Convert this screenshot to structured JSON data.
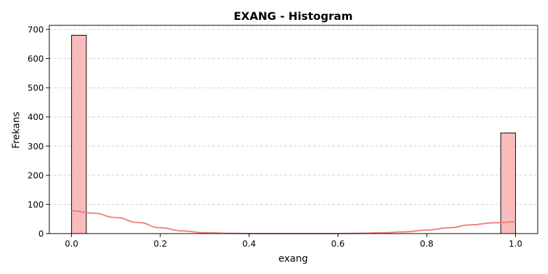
{
  "chart_data": {
    "type": "bar",
    "title": "EXANG - Histogram",
    "xlabel": "exang",
    "ylabel": "Frekans",
    "xlim": [
      -0.05,
      1.05
    ],
    "ylim": [
      0,
      714
    ],
    "xticks": [
      0.0,
      0.2,
      0.4,
      0.6,
      0.8,
      1.0
    ],
    "xtick_labels": [
      "0.0",
      "0.2",
      "0.4",
      "0.6",
      "0.8",
      "1.0"
    ],
    "yticks": [
      0,
      100,
      200,
      300,
      400,
      500,
      600,
      700
    ],
    "ytick_labels": [
      "0",
      "100",
      "200",
      "300",
      "400",
      "500",
      "600",
      "700"
    ],
    "grid": "y-dashed",
    "bar_color": "#f8bcbc",
    "bar_edge_color": "#000000",
    "kde_color": "#f08080",
    "bars": [
      {
        "x0": 0.0,
        "x1": 0.0333,
        "value": 680
      },
      {
        "x0": 0.9667,
        "x1": 1.0,
        "value": 345
      }
    ],
    "kde": {
      "x": [
        0.0,
        0.05,
        0.1,
        0.15,
        0.2,
        0.25,
        0.3,
        0.35,
        0.4,
        0.5,
        0.6,
        0.65,
        0.7,
        0.75,
        0.8,
        0.85,
        0.9,
        0.95,
        1.0
      ],
      "y": [
        78,
        70,
        55,
        38,
        20,
        9,
        3,
        1,
        0,
        0,
        0,
        1,
        3,
        6,
        12,
        20,
        30,
        37,
        40
      ]
    }
  }
}
